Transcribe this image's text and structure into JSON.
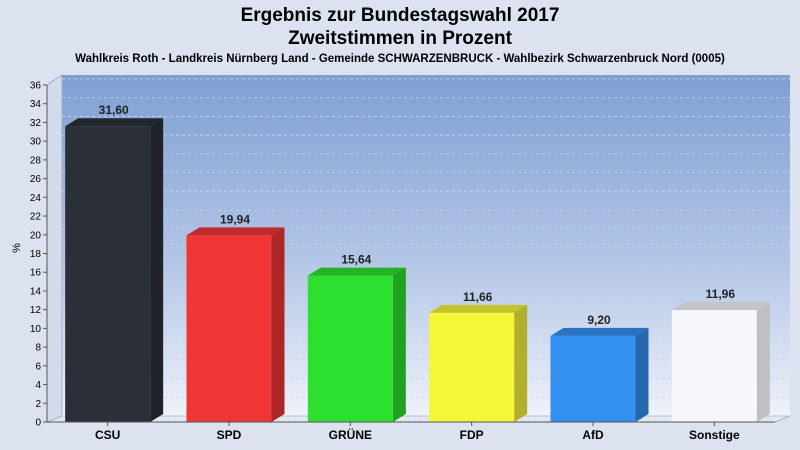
{
  "title_line1": "Ergebnis zur Bundestagswahl 2017",
  "title_line2": "Zweitstimmen in Prozent",
  "subtitle": "Wahlkreis Roth - Landkreis Nürnberg Land - Gemeinde SCHWARZENBRUCK - Wahlbezirk Schwarzenbruck Nord (0005)",
  "chart_data": {
    "type": "bar",
    "title": "Ergebnis zur Bundestagswahl 2017 Zweitstimmen in Prozent",
    "subtitle": "Wahlkreis Roth - Landkreis Nürnberg Land - Gemeinde SCHWARZENBRUCK - Wahlbezirk Schwarzenbruck Nord (0005)",
    "xlabel": "",
    "ylabel": "%",
    "ylim": [
      0,
      36
    ],
    "yticks": [
      0,
      2,
      4,
      6,
      8,
      10,
      12,
      14,
      16,
      18,
      20,
      22,
      24,
      26,
      28,
      30,
      32,
      34,
      36
    ],
    "grid": true,
    "categories": [
      "CSU",
      "SPD",
      "GRÜNE",
      "FDP",
      "AfD",
      "Sonstige"
    ],
    "values": [
      31.6,
      19.94,
      15.64,
      11.66,
      9.2,
      11.96
    ],
    "value_labels": [
      "31,60",
      "19,94",
      "15,64",
      "11,66",
      "9,20",
      "11,96"
    ],
    "colors": [
      "#2b2f38",
      "#f03535",
      "#2de02d",
      "#f5f53a",
      "#3390f0",
      "#f4f6fb"
    ]
  }
}
